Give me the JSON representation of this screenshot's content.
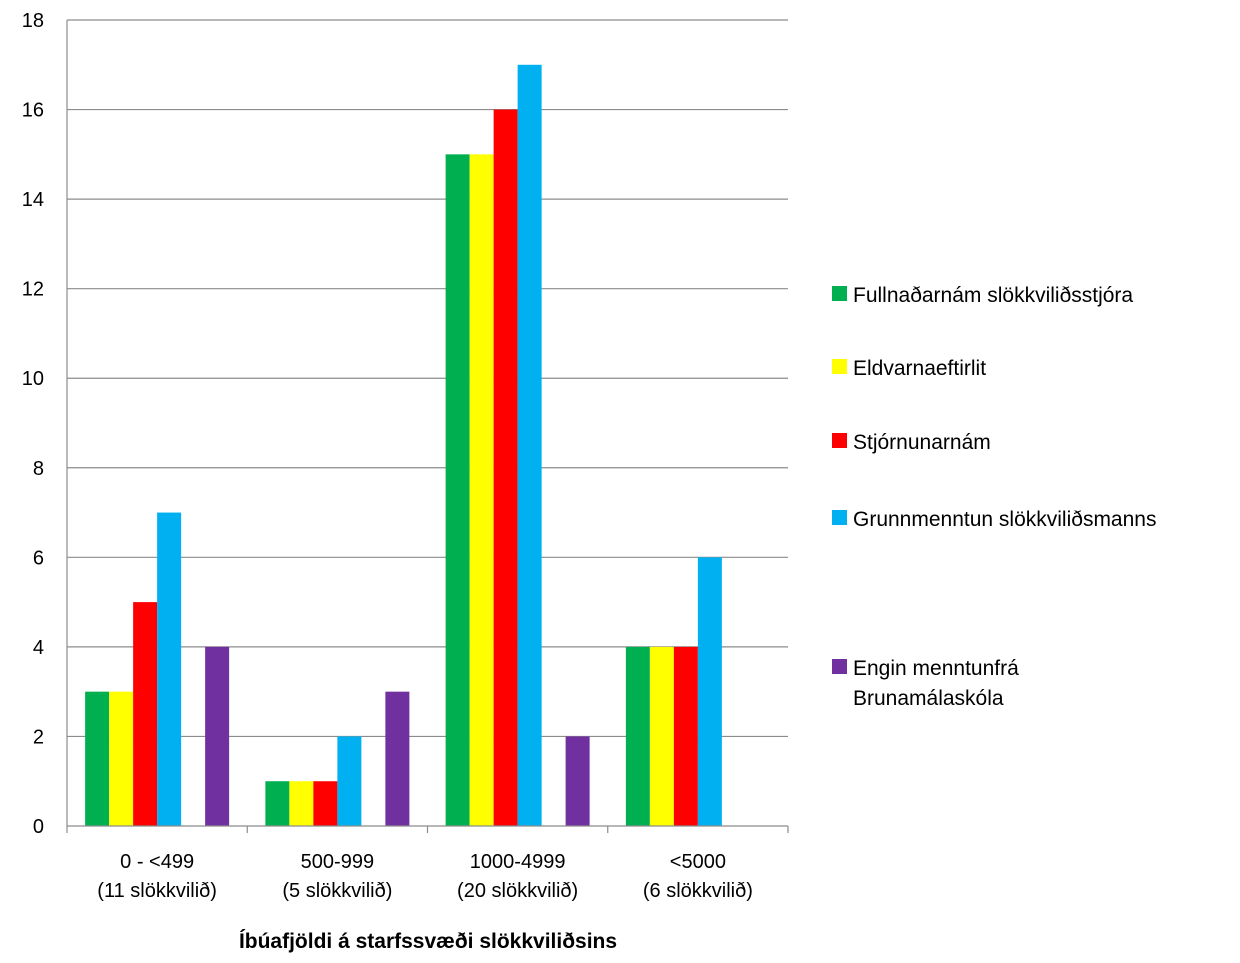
{
  "chart_data": {
    "type": "bar",
    "categories": [
      [
        "0 - <499",
        "(11 slökkvilið)"
      ],
      [
        "500-999",
        "(5 slökkvilið)"
      ],
      [
        "1000-4999",
        "(20 slökkvilið)"
      ],
      [
        "<5000",
        "(6 slökkvilið)"
      ]
    ],
    "series": [
      {
        "name": "Fullnaðarnám slökkviliðsstjóra",
        "color": "#00b050",
        "values": [
          3,
          1,
          15,
          4
        ]
      },
      {
        "name": "Eldvarnaeftirlit",
        "color": "#ffff00",
        "values": [
          3,
          1,
          15,
          4
        ]
      },
      {
        "name": "Stjórnunarnám",
        "color": "#ff0000",
        "values": [
          5,
          1,
          16,
          4
        ]
      },
      {
        "name": "Grunnmenntun slökkviliðsmanns",
        "color": "#00b0f0",
        "values": [
          7,
          2,
          17,
          6
        ]
      },
      {
        "name": "",
        "color": "#ffffff",
        "values": [
          0,
          0,
          0,
          0
        ]
      },
      {
        "name": "Engin menntunfrá Brunamálaskóla",
        "color": "#7030a0",
        "values": [
          4,
          3,
          2,
          0
        ]
      }
    ],
    "xlabel": "Íbúafjöldi á starfssvæði slökkviliðsins",
    "ylabel": "",
    "ylim": [
      0,
      18
    ],
    "yticks": [
      0,
      2,
      4,
      6,
      8,
      10,
      12,
      14,
      16,
      18
    ],
    "grid": true,
    "legend_position": "right"
  }
}
